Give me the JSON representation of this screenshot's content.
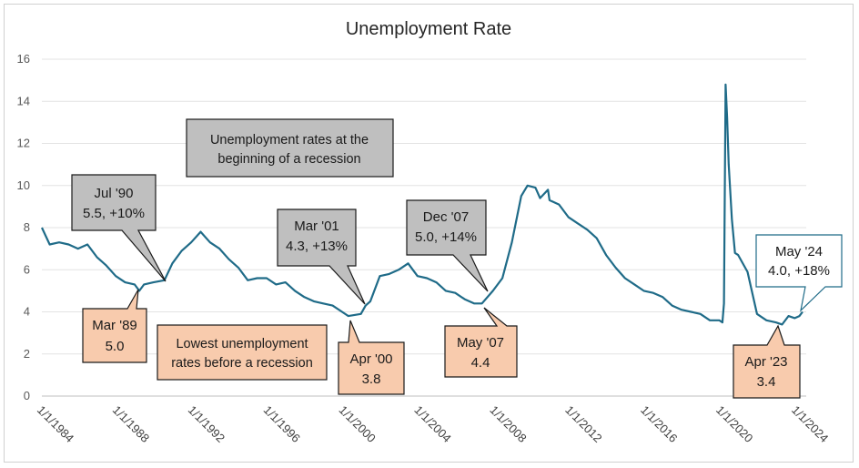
{
  "chart_data": {
    "type": "line",
    "title": "Unemployment Rate",
    "xlabel": "",
    "ylabel": "",
    "ylim": [
      0,
      16
    ],
    "yticks": [
      0,
      2,
      4,
      6,
      8,
      10,
      12,
      14,
      16
    ],
    "xticks": [
      "1/1/1984",
      "1/1/1988",
      "1/1/1992",
      "1/1/1996",
      "1/1/2000",
      "1/1/2004",
      "1/1/2008",
      "1/1/2012",
      "1/1/2016",
      "1/1/2020",
      "1/1/2024"
    ],
    "xlim": [
      "1984-01",
      "2024-05"
    ],
    "grid": "horizontal",
    "legend": "none",
    "series": [
      {
        "color": "#1f6b88",
        "points": [
          [
            "1984-01",
            8.0
          ],
          [
            "1984-06",
            7.2
          ],
          [
            "1984-12",
            7.3
          ],
          [
            "1985-06",
            7.2
          ],
          [
            "1985-12",
            7.0
          ],
          [
            "1986-06",
            7.2
          ],
          [
            "1986-12",
            6.6
          ],
          [
            "1987-06",
            6.2
          ],
          [
            "1987-12",
            5.7
          ],
          [
            "1988-06",
            5.4
          ],
          [
            "1988-12",
            5.3
          ],
          [
            "1989-03",
            5.0
          ],
          [
            "1989-06",
            5.3
          ],
          [
            "1989-12",
            5.4
          ],
          [
            "1990-07",
            5.5
          ],
          [
            "1990-12",
            6.3
          ],
          [
            "1991-06",
            6.9
          ],
          [
            "1991-12",
            7.3
          ],
          [
            "1992-06",
            7.8
          ],
          [
            "1992-12",
            7.3
          ],
          [
            "1993-06",
            7.0
          ],
          [
            "1993-12",
            6.5
          ],
          [
            "1994-06",
            6.1
          ],
          [
            "1994-12",
            5.5
          ],
          [
            "1995-06",
            5.6
          ],
          [
            "1995-12",
            5.6
          ],
          [
            "1996-06",
            5.3
          ],
          [
            "1996-12",
            5.4
          ],
          [
            "1997-06",
            5.0
          ],
          [
            "1997-12",
            4.7
          ],
          [
            "1998-06",
            4.5
          ],
          [
            "1998-12",
            4.4
          ],
          [
            "1999-06",
            4.3
          ],
          [
            "1999-12",
            4.0
          ],
          [
            "2000-04",
            3.8
          ],
          [
            "2000-12",
            3.9
          ],
          [
            "2001-03",
            4.3
          ],
          [
            "2001-06",
            4.5
          ],
          [
            "2001-12",
            5.7
          ],
          [
            "2002-06",
            5.8
          ],
          [
            "2002-12",
            6.0
          ],
          [
            "2003-06",
            6.3
          ],
          [
            "2003-12",
            5.7
          ],
          [
            "2004-06",
            5.6
          ],
          [
            "2004-12",
            5.4
          ],
          [
            "2005-06",
            5.0
          ],
          [
            "2005-12",
            4.9
          ],
          [
            "2006-06",
            4.6
          ],
          [
            "2006-12",
            4.4
          ],
          [
            "2007-05",
            4.4
          ],
          [
            "2007-12",
            5.0
          ],
          [
            "2008-06",
            5.6
          ],
          [
            "2008-12",
            7.3
          ],
          [
            "2009-06",
            9.5
          ],
          [
            "2009-10",
            10.0
          ],
          [
            "2010-03",
            9.9
          ],
          [
            "2010-06",
            9.4
          ],
          [
            "2010-11",
            9.8
          ],
          [
            "2010-12",
            9.3
          ],
          [
            "2011-06",
            9.1
          ],
          [
            "2011-12",
            8.5
          ],
          [
            "2012-06",
            8.2
          ],
          [
            "2012-12",
            7.9
          ],
          [
            "2013-06",
            7.5
          ],
          [
            "2013-12",
            6.7
          ],
          [
            "2014-06",
            6.1
          ],
          [
            "2014-12",
            5.6
          ],
          [
            "2015-06",
            5.3
          ],
          [
            "2015-12",
            5.0
          ],
          [
            "2016-06",
            4.9
          ],
          [
            "2016-12",
            4.7
          ],
          [
            "2017-06",
            4.3
          ],
          [
            "2017-12",
            4.1
          ],
          [
            "2018-06",
            4.0
          ],
          [
            "2018-12",
            3.9
          ],
          [
            "2019-06",
            3.6
          ],
          [
            "2019-12",
            3.6
          ],
          [
            "2020-02",
            3.5
          ],
          [
            "2020-03",
            4.4
          ],
          [
            "2020-04",
            14.8
          ],
          [
            "2020-05",
            13.2
          ],
          [
            "2020-06",
            11.0
          ],
          [
            "2020-08",
            8.4
          ],
          [
            "2020-10",
            6.8
          ],
          [
            "2020-12",
            6.7
          ],
          [
            "2021-06",
            5.9
          ],
          [
            "2021-12",
            3.9
          ],
          [
            "2022-06",
            3.6
          ],
          [
            "2022-12",
            3.5
          ],
          [
            "2023-04",
            3.4
          ],
          [
            "2023-08",
            3.8
          ],
          [
            "2023-12",
            3.7
          ],
          [
            "2024-03",
            3.8
          ],
          [
            "2024-05",
            4.0
          ]
        ]
      }
    ],
    "annotations": {
      "jul90": {
        "line1": "Jul '90",
        "line2": "5.5, +10%",
        "fill": "#bfbfbf",
        "target": [
          "1990-07",
          5.5
        ]
      },
      "mar01": {
        "line1": "Mar '01",
        "line2": "4.3, +13%",
        "fill": "#bfbfbf",
        "target": [
          "2001-03",
          4.3
        ]
      },
      "dec07": {
        "line1": "Dec '07",
        "line2": "5.0, +14%",
        "fill": "#bfbfbf",
        "target": [
          "2007-12",
          5.0
        ]
      },
      "may24": {
        "line1": "May '24",
        "line2": "4.0, +18%",
        "fill": "#ffffff",
        "target": [
          "2024-05",
          4.0
        ]
      },
      "mar89": {
        "line1": "Mar '89",
        "line2": "5.0",
        "fill": "#f8cbad",
        "target": [
          "1989-03",
          5.0
        ]
      },
      "apr00": {
        "line1": "Apr '00",
        "line2": "3.8",
        "fill": "#f8cbad",
        "target": [
          "2000-04",
          3.8
        ]
      },
      "may07": {
        "line1": "May '07",
        "line2": "4.4",
        "fill": "#f8cbad",
        "target": [
          "2007-05",
          4.4
        ]
      },
      "apr23": {
        "line1": "Apr '23",
        "line2": "3.4",
        "fill": "#f8cbad",
        "target": [
          "2023-04",
          3.4
        ]
      }
    },
    "notes": {
      "grey_note": {
        "line1": "Unemployment rates at the",
        "line2": "beginning of a recession",
        "fill": "#bfbfbf"
      },
      "peach_note": {
        "line1": "Lowest unemployment",
        "line2": "rates before a recession",
        "fill": "#f8cbad"
      }
    }
  }
}
